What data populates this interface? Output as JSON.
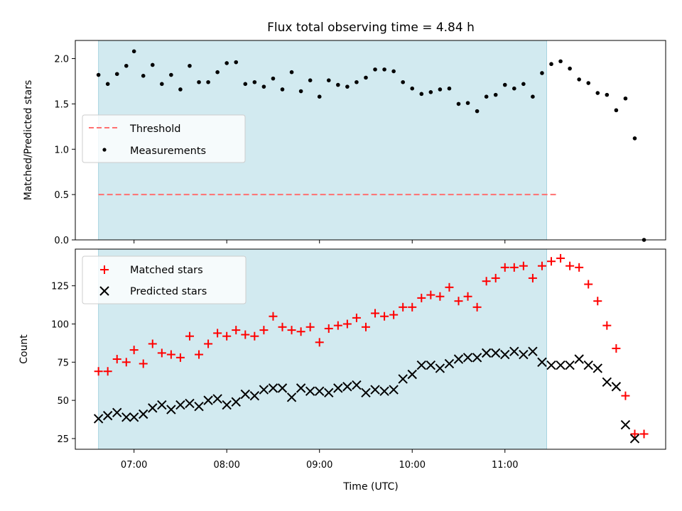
{
  "chart_data": {
    "title": "Flux total observing time = 4.84 h",
    "xlabel": "Time (UTC)",
    "x_ticks": [
      "07:00",
      "08:00",
      "09:00",
      "10:00",
      "11:00"
    ],
    "observing_window": [
      "06:37",
      "11:27"
    ],
    "panels": [
      {
        "type": "scatter",
        "ylabel": "Matched/Predicted stars",
        "ylim": [
          0,
          2.2
        ],
        "y_ticks": [
          0.0,
          0.5,
          1.0,
          1.5,
          2.0
        ],
        "legend": {
          "placement": "center-left",
          "entries": [
            "Threshold",
            "Measurements"
          ]
        },
        "threshold": {
          "name": "Threshold",
          "value": 0.5,
          "x_range": [
            "06:37",
            "11:33"
          ],
          "color": "#ff7070"
        },
        "series": [
          {
            "name": "Measurements",
            "color": "#000000",
            "points": [
              [
                "06:37",
                1.82
              ],
              [
                "06:43",
                1.72
              ],
              [
                "06:49",
                1.83
              ],
              [
                "06:55",
                1.92
              ],
              [
                "07:00",
                2.08
              ],
              [
                "07:06",
                1.81
              ],
              [
                "07:12",
                1.93
              ],
              [
                "07:18",
                1.72
              ],
              [
                "07:24",
                1.82
              ],
              [
                "07:30",
                1.66
              ],
              [
                "07:36",
                1.92
              ],
              [
                "07:42",
                1.74
              ],
              [
                "07:48",
                1.74
              ],
              [
                "07:54",
                1.85
              ],
              [
                "08:00",
                1.95
              ],
              [
                "08:06",
                1.96
              ],
              [
                "08:12",
                1.72
              ],
              [
                "08:18",
                1.74
              ],
              [
                "08:24",
                1.69
              ],
              [
                "08:30",
                1.78
              ],
              [
                "08:36",
                1.66
              ],
              [
                "08:42",
                1.85
              ],
              [
                "08:48",
                1.64
              ],
              [
                "08:54",
                1.76
              ],
              [
                "09:00",
                1.58
              ],
              [
                "09:06",
                1.76
              ],
              [
                "09:12",
                1.71
              ],
              [
                "09:18",
                1.69
              ],
              [
                "09:24",
                1.74
              ],
              [
                "09:30",
                1.79
              ],
              [
                "09:36",
                1.88
              ],
              [
                "09:42",
                1.88
              ],
              [
                "09:48",
                1.86
              ],
              [
                "09:54",
                1.74
              ],
              [
                "10:00",
                1.67
              ],
              [
                "10:06",
                1.61
              ],
              [
                "10:12",
                1.63
              ],
              [
                "10:18",
                1.66
              ],
              [
                "10:24",
                1.67
              ],
              [
                "10:30",
                1.5
              ],
              [
                "10:36",
                1.51
              ],
              [
                "10:42",
                1.42
              ],
              [
                "10:48",
                1.58
              ],
              [
                "10:54",
                1.6
              ],
              [
                "11:00",
                1.71
              ],
              [
                "11:06",
                1.67
              ],
              [
                "11:12",
                1.72
              ],
              [
                "11:18",
                1.58
              ],
              [
                "11:24",
                1.84
              ],
              [
                "11:30",
                1.94
              ],
              [
                "11:36",
                1.97
              ],
              [
                "11:42",
                1.89
              ],
              [
                "11:48",
                1.77
              ],
              [
                "11:54",
                1.73
              ],
              [
                "12:00",
                1.62
              ],
              [
                "12:06",
                1.6
              ],
              [
                "12:12",
                1.43
              ],
              [
                "12:18",
                1.56
              ],
              [
                "12:24",
                1.12
              ],
              [
                "12:30",
                0.0
              ]
            ]
          }
        ]
      },
      {
        "type": "scatter",
        "ylabel": "Count",
        "ylim": [
          18,
          149
        ],
        "y_ticks": [
          25,
          50,
          75,
          100,
          125
        ],
        "legend": {
          "placement": "top-left",
          "entries": [
            "Matched stars",
            "Predicted stars"
          ]
        },
        "series": [
          {
            "name": "Matched stars",
            "marker": "plus",
            "color": "#ff0000",
            "points": [
              [
                "06:37",
                69
              ],
              [
                "06:43",
                69
              ],
              [
                "06:49",
                77
              ],
              [
                "06:55",
                75
              ],
              [
                "07:00",
                83
              ],
              [
                "07:06",
                74
              ],
              [
                "07:12",
                87
              ],
              [
                "07:18",
                81
              ],
              [
                "07:24",
                80
              ],
              [
                "07:30",
                78
              ],
              [
                "07:36",
                92
              ],
              [
                "07:42",
                80
              ],
              [
                "07:48",
                87
              ],
              [
                "07:54",
                94
              ],
              [
                "08:00",
                92
              ],
              [
                "08:06",
                96
              ],
              [
                "08:12",
                93
              ],
              [
                "08:18",
                92
              ],
              [
                "08:24",
                96
              ],
              [
                "08:30",
                105
              ],
              [
                "08:36",
                98
              ],
              [
                "08:42",
                96
              ],
              [
                "08:48",
                95
              ],
              [
                "08:54",
                98
              ],
              [
                "09:00",
                88
              ],
              [
                "09:06",
                97
              ],
              [
                "09:12",
                99
              ],
              [
                "09:18",
                100
              ],
              [
                "09:24",
                104
              ],
              [
                "09:30",
                98
              ],
              [
                "09:36",
                107
              ],
              [
                "09:42",
                105
              ],
              [
                "09:48",
                106
              ],
              [
                "09:54",
                111
              ],
              [
                "10:00",
                111
              ],
              [
                "10:06",
                117
              ],
              [
                "10:12",
                119
              ],
              [
                "10:18",
                118
              ],
              [
                "10:24",
                124
              ],
              [
                "10:30",
                115
              ],
              [
                "10:36",
                118
              ],
              [
                "10:42",
                111
              ],
              [
                "10:48",
                128
              ],
              [
                "10:54",
                130
              ],
              [
                "11:00",
                137
              ],
              [
                "11:06",
                137
              ],
              [
                "11:12",
                138
              ],
              [
                "11:18",
                130
              ],
              [
                "11:24",
                138
              ],
              [
                "11:30",
                141
              ],
              [
                "11:36",
                143
              ],
              [
                "11:42",
                138
              ],
              [
                "11:48",
                137
              ],
              [
                "11:54",
                126
              ],
              [
                "12:00",
                115
              ],
              [
                "12:06",
                99
              ],
              [
                "12:12",
                84
              ],
              [
                "12:18",
                53
              ],
              [
                "12:24",
                28
              ],
              [
                "12:30",
                28
              ]
            ]
          },
          {
            "name": "Predicted stars",
            "marker": "x",
            "color": "#000000",
            "points": [
              [
                "06:37",
                38
              ],
              [
                "06:43",
                40
              ],
              [
                "06:49",
                42
              ],
              [
                "06:55",
                39
              ],
              [
                "07:00",
                39
              ],
              [
                "07:06",
                41
              ],
              [
                "07:12",
                45
              ],
              [
                "07:18",
                47
              ],
              [
                "07:24",
                44
              ],
              [
                "07:30",
                47
              ],
              [
                "07:36",
                48
              ],
              [
                "07:42",
                46
              ],
              [
                "07:48",
                50
              ],
              [
                "07:54",
                51
              ],
              [
                "08:00",
                47
              ],
              [
                "08:06",
                49
              ],
              [
                "08:12",
                54
              ],
              [
                "08:18",
                53
              ],
              [
                "08:24",
                57
              ],
              [
                "08:30",
                58
              ],
              [
                "08:36",
                58
              ],
              [
                "08:42",
                52
              ],
              [
                "08:48",
                58
              ],
              [
                "08:54",
                56
              ],
              [
                "09:00",
                56
              ],
              [
                "09:06",
                55
              ],
              [
                "09:12",
                58
              ],
              [
                "09:18",
                59
              ],
              [
                "09:24",
                60
              ],
              [
                "09:30",
                55
              ],
              [
                "09:36",
                57
              ],
              [
                "09:42",
                56
              ],
              [
                "09:48",
                57
              ],
              [
                "09:54",
                64
              ],
              [
                "10:00",
                67
              ],
              [
                "10:06",
                73
              ],
              [
                "10:12",
                73
              ],
              [
                "10:18",
                71
              ],
              [
                "10:24",
                74
              ],
              [
                "10:30",
                77
              ],
              [
                "10:36",
                78
              ],
              [
                "10:42",
                78
              ],
              [
                "10:48",
                81
              ],
              [
                "10:54",
                81
              ],
              [
                "11:00",
                80
              ],
              [
                "11:06",
                82
              ],
              [
                "11:12",
                80
              ],
              [
                "11:18",
                82
              ],
              [
                "11:24",
                75
              ],
              [
                "11:30",
                73
              ],
              [
                "11:36",
                73
              ],
              [
                "11:42",
                73
              ],
              [
                "11:48",
                77
              ],
              [
                "11:54",
                73
              ],
              [
                "12:00",
                71
              ],
              [
                "12:06",
                62
              ],
              [
                "12:12",
                59
              ],
              [
                "12:18",
                34
              ],
              [
                "12:24",
                25
              ]
            ]
          }
        ]
      }
    ]
  },
  "colors": {
    "observing_band": "#d2eaf0",
    "band_edge": "#a8d4e0",
    "threshold": "#ff7070",
    "matched": "#ff0000",
    "predicted": "#000000",
    "measurement": "#000000"
  }
}
